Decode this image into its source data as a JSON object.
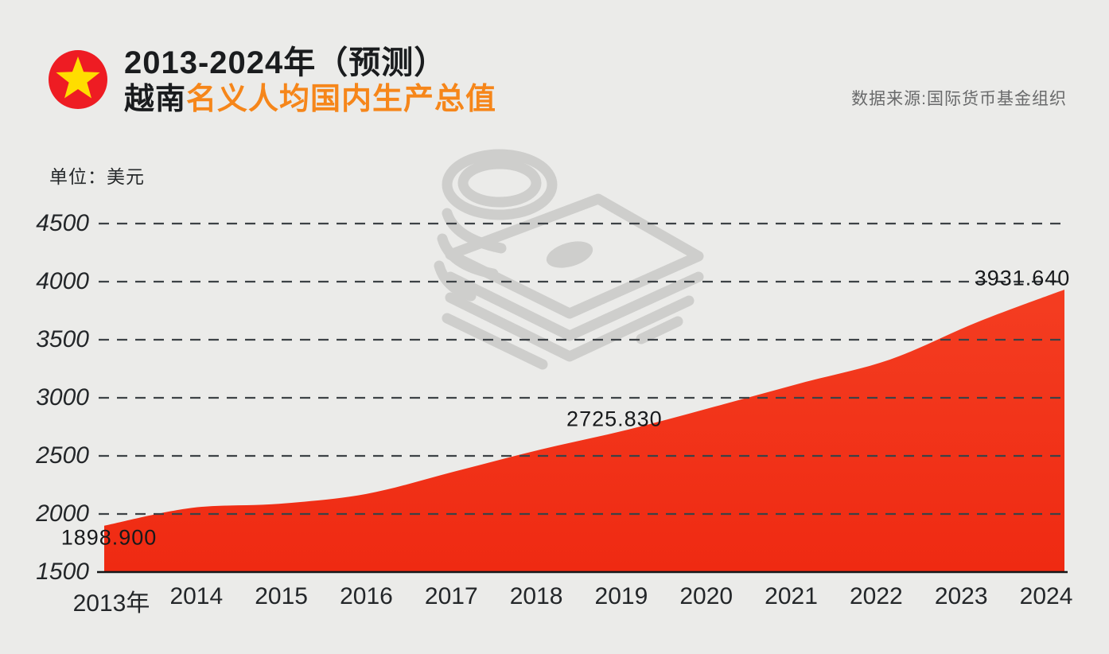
{
  "header": {
    "title_line1": "2013-2024年（预测）",
    "title_line2_black": "越南",
    "title_line2_orange": "名义人均国内生产总值",
    "source": "数据来源:国际货币基金组织"
  },
  "unit_label": "单位：美元",
  "colors": {
    "background": "#ebebe9",
    "area_red_top": "#f43d21",
    "area_red_bottom": "#ef2a12",
    "title_orange": "#f6861a",
    "flag_red": "#ee1c23",
    "star_yellow": "#ffdd00",
    "gridline": "#3d4246",
    "baseline": "#141618",
    "watermark_gray": "#c9c9c7",
    "source_gray": "#696a6b"
  },
  "chart_data": {
    "type": "area",
    "title": "2013-2024年（预测）越南名义人均国内生产总值",
    "subtitle_unit": "单位：美元",
    "source": "数据来源:国际货币基金组织",
    "x_labels": [
      "2013年",
      "2014",
      "2015",
      "2016",
      "2017",
      "2018",
      "2019",
      "2020",
      "2021",
      "2022",
      "2023",
      "2024"
    ],
    "years": [
      2013,
      2014,
      2015,
      2016,
      2017,
      2018,
      2019,
      2020,
      2021,
      2022,
      2023,
      2024
    ],
    "values": [
      1898.9,
      2052,
      2088,
      2172,
      2363,
      2555,
      2725.83,
      2925,
      3130,
      3329,
      3651,
      3931.64
    ],
    "labeled_points": [
      {
        "year": 2013,
        "text": "1898.900"
      },
      {
        "year": 2019,
        "text": "2725.830"
      },
      {
        "year": 2024,
        "text": "3931.640"
      }
    ],
    "y_ticks": [
      1500,
      2000,
      2500,
      3000,
      3500,
      4000,
      4500
    ],
    "ylim": [
      1500,
      4500
    ],
    "xlabel": "",
    "ylabel": "美元",
    "grid": "horizontal-dashed",
    "legend": "none",
    "watermark": "money-stack-and-coins"
  }
}
